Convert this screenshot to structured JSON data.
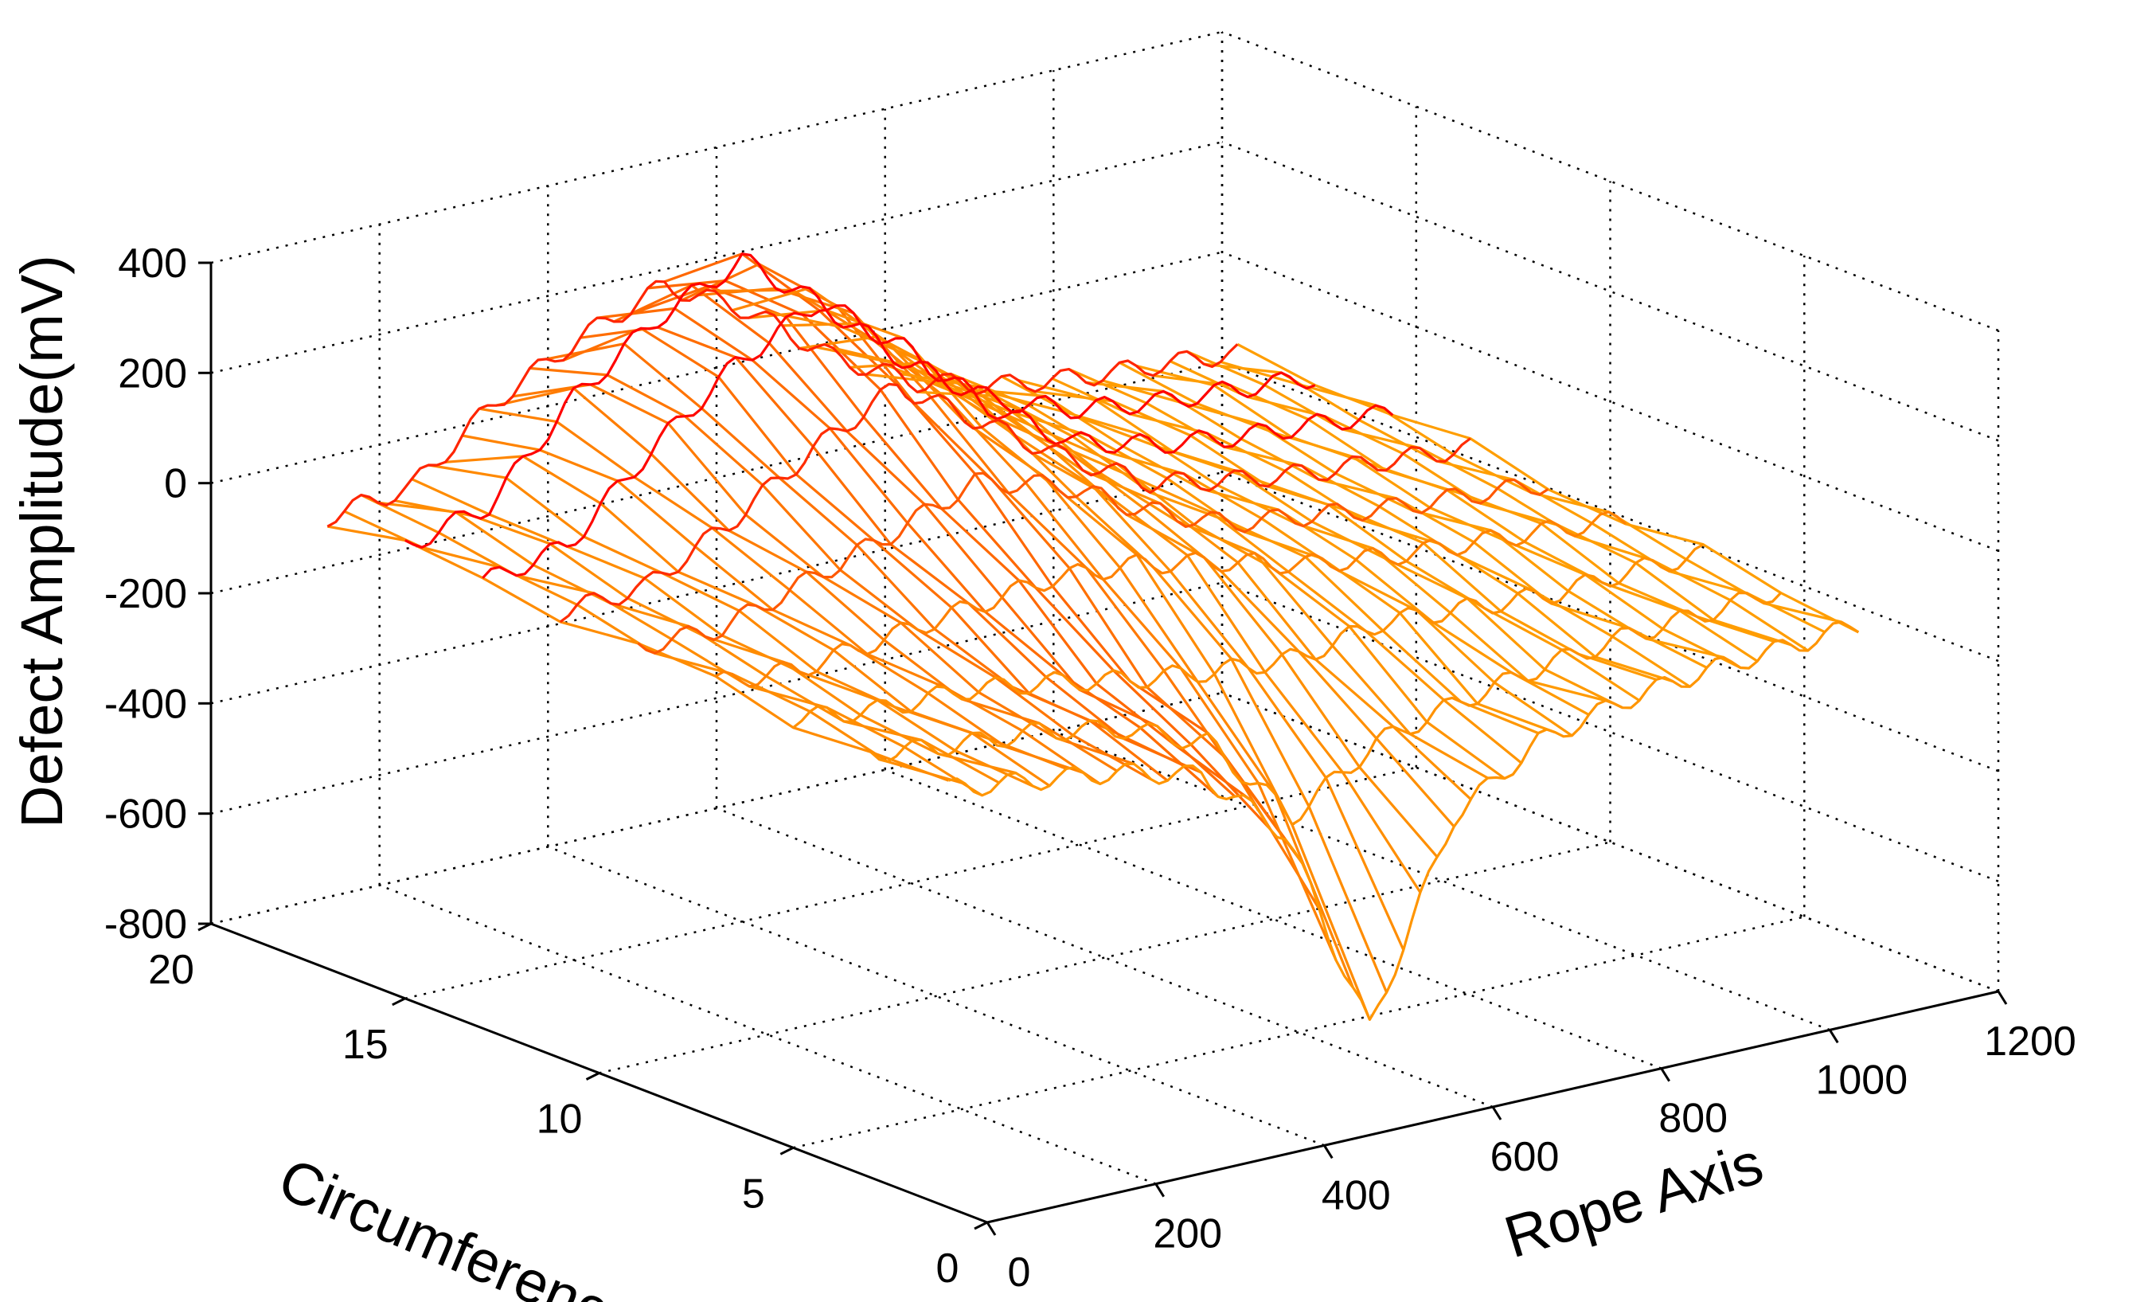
{
  "chart_data": {
    "type": "surface",
    "title": "",
    "xlabel": "Rope Axis",
    "ylabel": "Circumference",
    "zlabel": "Defect Amplitude(mV)",
    "xlim": [
      0,
      1200
    ],
    "ylim": [
      0,
      20
    ],
    "zlim": [
      -800,
      400
    ],
    "x_ticks": [
      "0",
      "200",
      "400",
      "600",
      "800",
      "1000",
      "1200"
    ],
    "y_ticks": [
      "0",
      "5",
      "10",
      "15",
      "20"
    ],
    "z_ticks": [
      "400",
      "200",
      "0",
      "-200",
      "-400",
      "-600",
      "-800"
    ],
    "grid": true,
    "colormap": [
      "#ffd000",
      "#ff8000",
      "#ff0000"
    ],
    "series": [
      {
        "circumference": 1,
        "x": [
          0,
          100,
          200,
          300,
          400,
          500,
          600,
          700,
          800,
          900,
          1000,
          1080
        ],
        "z": [
          -40,
          -60,
          -80,
          -120,
          -260,
          -650,
          -300,
          -200,
          -160,
          -140,
          -130,
          -120
        ]
      },
      {
        "circumference": 3,
        "x": [
          0,
          100,
          200,
          300,
          400,
          500,
          600,
          700,
          800,
          900,
          1000,
          1080
        ],
        "z": [
          -30,
          -50,
          -60,
          -90,
          -150,
          -320,
          -220,
          -180,
          -150,
          -130,
          -120,
          -110
        ]
      },
      {
        "circumference": 5,
        "x": [
          0,
          100,
          200,
          300,
          400,
          500,
          600,
          700,
          800,
          900,
          1000,
          1080
        ],
        "z": [
          -20,
          -40,
          -40,
          -60,
          -90,
          -110,
          -120,
          -90,
          -100,
          -110,
          -100,
          -100
        ]
      },
      {
        "circumference": 7,
        "x": [
          0,
          100,
          200,
          300,
          400,
          500,
          600,
          700,
          800,
          900,
          1000,
          1080
        ],
        "z": [
          -10,
          -20,
          0,
          20,
          40,
          30,
          0,
          -40,
          -60,
          -70,
          -80,
          -90
        ]
      },
      {
        "circumference": 9,
        "x": [
          0,
          100,
          200,
          300,
          400,
          500,
          600,
          700,
          800,
          900,
          1000,
          1080
        ],
        "z": [
          0,
          0,
          50,
          100,
          160,
          120,
          40,
          -20,
          -40,
          -60,
          -70,
          -80
        ]
      },
      {
        "circumference": 11,
        "x": [
          0,
          100,
          200,
          300,
          400,
          500,
          600,
          700,
          800,
          900,
          1000,
          1080
        ],
        "z": [
          10,
          20,
          100,
          200,
          280,
          180,
          80,
          0,
          -30,
          -50,
          -60,
          -70
        ]
      },
      {
        "circumference": 13,
        "x": [
          0,
          100,
          200,
          300,
          400,
          500,
          600,
          700,
          800,
          900,
          1000,
          1080
        ],
        "z": [
          10,
          40,
          180,
          300,
          380,
          260,
          120,
          20,
          -20,
          -40,
          -50,
          -60
        ]
      },
      {
        "circumference": 15,
        "x": [
          0,
          100,
          200,
          300,
          400,
          500,
          600,
          700,
          800,
          900,
          1000,
          1080
        ],
        "z": [
          20,
          60,
          220,
          330,
          400,
          280,
          140,
          40,
          -10,
          -30,
          -40,
          -50
        ]
      },
      {
        "circumference": 17,
        "x": [
          0,
          100,
          200,
          300,
          400,
          500,
          600,
          700,
          800,
          900,
          1000,
          1080
        ],
        "z": [
          20,
          40,
          160,
          240,
          300,
          220,
          100,
          20,
          -20,
          -40,
          -50,
          -60
        ]
      }
    ]
  }
}
